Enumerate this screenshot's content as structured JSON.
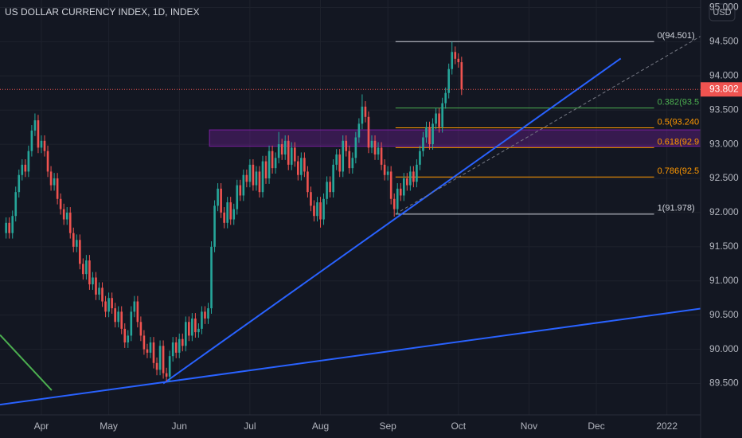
{
  "chart_data": {
    "type": "candlestick",
    "title": "US DOLLAR CURRENCY INDEX, 1D, INDEX",
    "currency": "USD",
    "up_color": "#26a69a",
    "down_color": "#ef5350",
    "grid": true,
    "xlim": [
      -1.9,
      216.5
    ],
    "ylim": [
      89.04,
      95.11
    ],
    "xticks": [
      {
        "value": 11,
        "label": "Apr"
      },
      {
        "value": 32,
        "label": "May"
      },
      {
        "value": 54,
        "label": "Jun"
      },
      {
        "value": 76,
        "label": "Jul"
      },
      {
        "value": 98,
        "label": "Aug"
      },
      {
        "value": 119,
        "label": "Sep"
      },
      {
        "value": 141,
        "label": "Oct"
      },
      {
        "value": 163,
        "label": "Nov"
      },
      {
        "value": 184,
        "label": "Dec"
      },
      {
        "value": 206,
        "label": "2022"
      }
    ],
    "yticks": [
      {
        "value": 89.5,
        "label": "89.500"
      },
      {
        "value": 90,
        "label": "90.000"
      },
      {
        "value": 90.5,
        "label": "90.500"
      },
      {
        "value": 91,
        "label": "91.000"
      },
      {
        "value": 91.5,
        "label": "91.500"
      },
      {
        "value": 92,
        "label": "92.000"
      },
      {
        "value": 92.5,
        "label": "92.500"
      },
      {
        "value": 93,
        "label": "93.000"
      },
      {
        "value": 93.5,
        "label": "93.500"
      },
      {
        "value": 94,
        "label": "94.000"
      },
      {
        "value": 94.5,
        "label": "94.500"
      },
      {
        "value": 95,
        "label": "95.000"
      }
    ],
    "last_price": {
      "value": 93.802,
      "label": "93.802"
    },
    "x": [
      0,
      1,
      2,
      3,
      4,
      5,
      6,
      7,
      8,
      9,
      10,
      11,
      12,
      13,
      14,
      15,
      16,
      17,
      18,
      19,
      20,
      21,
      22,
      23,
      24,
      25,
      26,
      27,
      28,
      29,
      30,
      31,
      32,
      33,
      34,
      35,
      36,
      37,
      38,
      39,
      40,
      41,
      42,
      43,
      44,
      45,
      46,
      47,
      48,
      49,
      50,
      51,
      52,
      53,
      54,
      55,
      56,
      57,
      58,
      59,
      60,
      61,
      62,
      63,
      64,
      65,
      66,
      67,
      68,
      69,
      70,
      71,
      72,
      73,
      74,
      75,
      76,
      77,
      78,
      79,
      80,
      81,
      82,
      83,
      84,
      85,
      86,
      87,
      88,
      89,
      90,
      91,
      92,
      93,
      94,
      95,
      96,
      97,
      98,
      99,
      100,
      101,
      102,
      103,
      104,
      105,
      106,
      107,
      108,
      109,
      110,
      111,
      112,
      113,
      114,
      115,
      116,
      117,
      118,
      119,
      120,
      121,
      122,
      123,
      124,
      125,
      126,
      127,
      128,
      129,
      130,
      131,
      132,
      133,
      134,
      135,
      136,
      137,
      138,
      139,
      140,
      141,
      142
    ],
    "open": [
      91.7,
      91.85,
      91.7,
      91.95,
      92.3,
      92.55,
      92.7,
      92.6,
      92.9,
      93.2,
      93.35,
      92.95,
      93.05,
      92.9,
      92.6,
      92.4,
      92.5,
      92.2,
      92.05,
      91.9,
      92.0,
      91.7,
      91.5,
      91.6,
      91.25,
      91.1,
      91.3,
      90.95,
      91.05,
      90.8,
      90.9,
      90.7,
      90.55,
      90.75,
      90.6,
      90.4,
      90.55,
      90.3,
      90.1,
      90.2,
      90.55,
      90.7,
      90.4,
      90.2,
      90.0,
      89.95,
      90.1,
      89.8,
      89.7,
      90.05,
      89.65,
      89.6,
      89.9,
      90.1,
      89.95,
      90.15,
      90.05,
      90.4,
      90.2,
      90.45,
      90.25,
      90.3,
      90.55,
      90.45,
      90.6,
      91.5,
      92.1,
      92.35,
      92.0,
      91.85,
      92.15,
      91.9,
      92.05,
      92.4,
      92.25,
      92.55,
      92.45,
      92.7,
      92.4,
      92.6,
      92.3,
      92.75,
      92.5,
      92.9,
      92.65,
      92.8,
      93.0,
      92.85,
      93.05,
      92.7,
      92.95,
      92.75,
      92.55,
      92.8,
      92.6,
      92.3,
      92.1,
      91.95,
      92.15,
      91.9,
      92.2,
      92.45,
      92.3,
      92.7,
      92.85,
      92.6,
      93.05,
      92.9,
      92.65,
      92.8,
      93.1,
      93.3,
      93.55,
      93.4,
      92.95,
      93.05,
      92.85,
      92.95,
      92.7,
      92.55,
      92.6,
      92.2,
      92.05,
      92.35,
      92.25,
      92.5,
      92.4,
      92.6,
      92.45,
      92.7,
      92.9,
      93.1,
      93.25,
      93.0,
      93.3,
      93.45,
      93.25,
      93.6,
      93.75,
      94.1,
      94.35,
      94.25,
      94.2
    ],
    "high": [
      91.93,
      91.93,
      92.03,
      92.38,
      92.63,
      92.78,
      92.78,
      92.98,
      93.28,
      93.45,
      93.43,
      93.13,
      93.13,
      92.98,
      92.68,
      92.58,
      92.58,
      92.28,
      92.13,
      92.08,
      92.08,
      91.78,
      91.68,
      91.68,
      91.33,
      91.38,
      91.38,
      91.13,
      91.13,
      90.98,
      90.98,
      90.78,
      90.83,
      90.83,
      90.68,
      90.63,
      90.63,
      90.38,
      90.28,
      90.63,
      90.78,
      90.78,
      90.48,
      90.28,
      90.08,
      90.18,
      90.18,
      89.88,
      90.13,
      90.13,
      89.73,
      89.98,
      90.18,
      90.18,
      90.23,
      90.23,
      90.48,
      90.48,
      90.53,
      90.53,
      90.38,
      90.63,
      90.63,
      90.68,
      91.58,
      92.18,
      92.43,
      92.43,
      92.08,
      92.23,
      92.23,
      92.13,
      92.48,
      92.48,
      92.63,
      92.63,
      92.78,
      92.78,
      92.68,
      92.68,
      92.83,
      92.83,
      92.98,
      92.98,
      92.88,
      93.18,
      93.08,
      93.13,
      93.13,
      93.03,
      93.03,
      92.83,
      92.88,
      92.88,
      92.68,
      92.38,
      92.18,
      92.23,
      92.23,
      92.28,
      92.53,
      92.53,
      92.78,
      92.93,
      92.93,
      93.13,
      93.13,
      92.98,
      92.88,
      93.18,
      93.38,
      93.73,
      93.63,
      93.48,
      93.13,
      93.13,
      93.03,
      93.03,
      92.78,
      92.68,
      92.68,
      92.28,
      92.43,
      92.43,
      92.58,
      92.58,
      92.68,
      92.68,
      92.78,
      92.98,
      93.18,
      93.33,
      93.33,
      93.38,
      93.53,
      93.53,
      93.68,
      93.83,
      94.18,
      94.5,
      94.43,
      94.33,
      94.28
    ],
    "low": [
      91.62,
      91.62,
      91.62,
      91.87,
      92.22,
      92.47,
      92.52,
      92.52,
      92.82,
      93.12,
      92.87,
      92.87,
      92.82,
      92.52,
      92.32,
      92.32,
      92.12,
      91.97,
      91.82,
      91.82,
      91.62,
      91.42,
      91.42,
      91.17,
      91.02,
      91.02,
      90.87,
      90.87,
      90.72,
      90.72,
      90.62,
      90.47,
      90.47,
      90.52,
      90.32,
      90.32,
      90.22,
      90.02,
      90.02,
      90.12,
      90.47,
      90.32,
      90.12,
      89.92,
      89.87,
      89.87,
      89.72,
      89.62,
      89.62,
      89.57,
      89.53,
      89.52,
      89.82,
      89.87,
      89.87,
      89.97,
      89.97,
      90.12,
      90.12,
      90.17,
      90.17,
      90.22,
      90.37,
      90.37,
      90.52,
      91.42,
      92.02,
      91.92,
      91.77,
      91.77,
      91.82,
      91.82,
      91.97,
      92.17,
      92.17,
      92.37,
      92.37,
      92.32,
      92.32,
      92.22,
      92.22,
      92.42,
      92.42,
      92.57,
      92.57,
      92.72,
      92.77,
      92.77,
      92.62,
      92.62,
      92.67,
      92.47,
      92.47,
      92.52,
      92.22,
      92.02,
      91.87,
      91.87,
      91.78,
      91.82,
      92.12,
      92.22,
      92.22,
      92.62,
      92.52,
      92.52,
      92.82,
      92.57,
      92.57,
      92.72,
      93.02,
      93.22,
      93.32,
      92.87,
      92.87,
      92.77,
      92.77,
      92.62,
      92.47,
      92.47,
      92.12,
      91.94,
      91.97,
      92.17,
      92.17,
      92.32,
      92.32,
      92.37,
      92.37,
      92.62,
      92.82,
      93.02,
      92.92,
      92.92,
      93.22,
      93.17,
      93.17,
      93.52,
      93.67,
      94.02,
      94.17,
      94.12,
      93.72
    ],
    "close": [
      91.85,
      91.7,
      91.95,
      92.3,
      92.55,
      92.7,
      92.6,
      92.9,
      93.2,
      93.35,
      92.95,
      93.05,
      92.9,
      92.6,
      92.4,
      92.5,
      92.2,
      92.05,
      91.9,
      92.0,
      91.7,
      91.5,
      91.6,
      91.25,
      91.1,
      91.3,
      90.95,
      91.05,
      90.8,
      90.9,
      90.7,
      90.55,
      90.75,
      90.6,
      90.4,
      90.55,
      90.3,
      90.1,
      90.2,
      90.55,
      90.7,
      90.4,
      90.2,
      90.0,
      89.95,
      90.1,
      89.8,
      89.7,
      90.05,
      89.65,
      89.6,
      89.9,
      90.1,
      89.95,
      90.15,
      90.05,
      90.4,
      90.2,
      90.45,
      90.25,
      90.3,
      90.55,
      90.45,
      90.6,
      91.5,
      92.1,
      92.35,
      92.0,
      91.85,
      92.15,
      91.9,
      92.05,
      92.4,
      92.25,
      92.55,
      92.45,
      92.7,
      92.4,
      92.6,
      92.3,
      92.75,
      92.5,
      92.9,
      92.65,
      92.8,
      93.0,
      92.85,
      93.05,
      92.7,
      92.95,
      92.75,
      92.55,
      92.8,
      92.6,
      92.3,
      92.1,
      91.95,
      92.15,
      91.9,
      92.2,
      92.45,
      92.3,
      92.7,
      92.85,
      92.6,
      93.05,
      92.9,
      92.65,
      92.8,
      93.1,
      93.3,
      93.55,
      93.4,
      92.95,
      93.05,
      92.85,
      92.95,
      92.7,
      92.55,
      92.6,
      92.2,
      92.05,
      92.35,
      92.25,
      92.5,
      92.4,
      92.6,
      92.45,
      92.7,
      92.9,
      93.1,
      93.25,
      93.0,
      93.3,
      93.45,
      93.25,
      93.6,
      93.75,
      94.1,
      94.35,
      94.25,
      94.2,
      93.802
    ],
    "fib": {
      "x_range": [
        121.4,
        202
      ],
      "levels": [
        {
          "label": "0(94.501)",
          "value": 94.501,
          "color": "#d1d4dc"
        },
        {
          "label": "0.382(93.5",
          "value": 93.53,
          "color": "#4caf50"
        },
        {
          "label": "0.5(93.240",
          "value": 93.24,
          "color": "#ff9800"
        },
        {
          "label": "0.618(92.9",
          "value": 92.95,
          "color": "#ff9800"
        },
        {
          "label": "0.786(92.5",
          "value": 92.52,
          "color": "#ff9800"
        },
        {
          "label": "1(91.978)",
          "value": 91.978,
          "color": "#d1d4dc"
        }
      ]
    },
    "zone": {
      "x": [
        63.4,
        216.5
      ],
      "y": [
        92.97,
        93.21
      ],
      "color": "#7b1fa2"
    },
    "trendlines": [
      {
        "color": "#2962ff",
        "dash": false,
        "points": [
          [
            49,
            89.5
          ],
          [
            191.6,
            94.255
          ]
        ]
      },
      {
        "color": "#787b86",
        "dash": true,
        "points": [
          [
            121.4,
            91.98
          ],
          [
            216.5,
            94.58
          ]
        ]
      },
      {
        "color": "#2962ff",
        "dash": false,
        "points": [
          [
            -1.9,
            89.19
          ],
          [
            216.5,
            90.595
          ]
        ]
      },
      {
        "color": "#4caf50",
        "dash": false,
        "points": [
          [
            -1.9,
            90.21
          ],
          [
            14.2,
            89.4
          ]
        ]
      }
    ]
  }
}
